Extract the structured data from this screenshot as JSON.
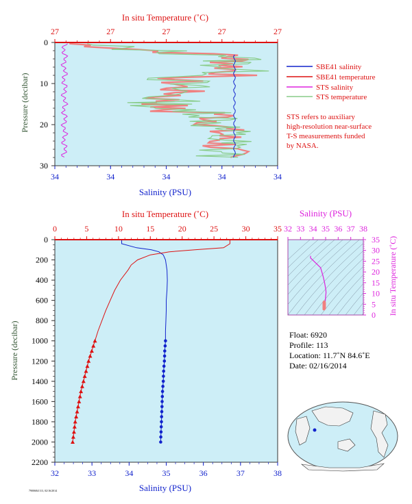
{
  "colors": {
    "plot_bg": "#cdeef7",
    "red": "#dd1111",
    "blue": "#1122cc",
    "magenta": "#dd22dd",
    "green": "#88cc88",
    "dark_green": "#335533",
    "salmon": "#f08080"
  },
  "top_panel": {
    "title": "In situ Temperature (˚C)",
    "top_ticks": [
      "27",
      "27",
      "27",
      "27",
      "27",
      "27"
    ],
    "bottom_ticks": [
      "34",
      "34",
      "34",
      "34",
      "34",
      "34"
    ],
    "y_ticks": [
      "0",
      "10",
      "20",
      "30"
    ],
    "ylabel": "Pressure (decibar)",
    "xlabel": "Salinity (PSU)",
    "legend": [
      {
        "label": "SBE41 salinity",
        "color": "#1122cc"
      },
      {
        "label": "SBE41 temperature",
        "color": "#dd1111"
      },
      {
        "label": "STS salinity",
        "color": "#dd22dd"
      },
      {
        "label": "STS temperature",
        "color": "#88cc88"
      }
    ],
    "note": [
      "STS refers to auxiliary",
      "high-resolution near-surface",
      "T-S measurements funded",
      "by NASA."
    ]
  },
  "main_panel": {
    "title": "In situ Temperature (˚C)",
    "top_ticks": [
      "0",
      "5",
      "10",
      "15",
      "20",
      "25",
      "30",
      "35"
    ],
    "bottom_ticks": [
      "32",
      "33",
      "34",
      "35",
      "36",
      "37",
      "38"
    ],
    "y_ticks": [
      "0",
      "200",
      "400",
      "600",
      "800",
      "1000",
      "1200",
      "1400",
      "1600",
      "1800",
      "2000",
      "2200"
    ],
    "ylabel": "Pressure (decibar)",
    "xlabel": "Salinity (PSU)"
  },
  "ts_panel": {
    "title": "Salinity (PSU)",
    "top_ticks": [
      "32",
      "33",
      "34",
      "35",
      "36",
      "37",
      "38"
    ],
    "right_ticks": [
      "0",
      "5",
      "10",
      "15",
      "20",
      "25",
      "30",
      "35"
    ],
    "ylabel": "In situ Temperature (˚C)"
  },
  "info": {
    "float": "Float:  6920",
    "profile": "Profile:  113",
    "location": "Location:  11.7˚N  84.6˚E",
    "date": "Date:  02/16/2014"
  },
  "footer_code": "7900684/113, 02/16/2014",
  "chart_data": [
    {
      "type": "line",
      "title": "In situ Temperature (˚C)",
      "xlabel": "Salinity (PSU)",
      "ylabel": "Pressure (decibar)",
      "ylim": [
        30,
        0
      ],
      "series": [
        {
          "name": "SBE41 salinity",
          "x": [
            33.995,
            33.995,
            33.996,
            33.996,
            33.995
          ],
          "y": [
            3,
            8,
            15,
            22,
            28
          ]
        },
        {
          "name": "STS salinity",
          "x": [
            33.964,
            33.965,
            33.965,
            33.966,
            33.964,
            33.965
          ],
          "y": [
            0.5,
            5,
            10,
            15,
            20,
            28
          ]
        }
      ]
    },
    {
      "type": "line",
      "title": "In situ Temperature (˚C)",
      "xlabel": "Salinity (PSU)",
      "ylabel": "Pressure (decibar)",
      "xlim": [
        32,
        38
      ],
      "ylim": [
        2200,
        0
      ],
      "series": [
        {
          "name": "Salinity",
          "y": [
            0,
            40,
            80,
            100,
            120,
            150,
            200,
            250,
            300,
            400,
            500,
            600,
            700,
            800,
            900,
            1000,
            1100,
            1200,
            1300,
            1400,
            1500,
            1600,
            1700,
            1800,
            1900,
            2000
          ],
          "x": [
            33.8,
            33.8,
            34.2,
            34.6,
            34.8,
            34.92,
            34.98,
            35.0,
            35.02,
            35.03,
            35.02,
            35.0,
            35.0,
            34.99,
            34.98,
            34.98,
            34.96,
            34.95,
            34.93,
            34.92,
            34.9,
            34.89,
            34.88,
            34.87,
            34.86,
            34.85
          ]
        },
        {
          "name": "In situ Temperature",
          "y": [
            0,
            40,
            80,
            100,
            120,
            150,
            200,
            250,
            300,
            400,
            500,
            600,
            700,
            800,
            900,
            1000,
            1100,
            1200,
            1300,
            1400,
            1500,
            1600,
            1700,
            1800,
            1900,
            2000
          ],
          "x": [
            27.5,
            27.5,
            26.5,
            22,
            18,
            15,
            13,
            12,
            11.5,
            10.3,
            9.4,
            8.7,
            8.0,
            7.4,
            6.8,
            6.3,
            5.8,
            5.3,
            4.9,
            4.5,
            4.1,
            3.8,
            3.5,
            3.2,
            3.0,
            2.8
          ]
        }
      ]
    },
    {
      "type": "scatter",
      "title": "Salinity (PSU)",
      "ylabel": "In situ Temperature (˚C)",
      "xlim": [
        32,
        38
      ],
      "ylim": [
        0,
        35
      ],
      "series": [
        {
          "name": "T-S",
          "x": [
            33.8,
            33.8,
            34.6,
            34.8,
            34.92,
            34.98,
            35.02,
            35.03,
            35.0,
            34.98,
            34.95,
            34.92,
            34.89,
            34.86,
            34.85
          ],
          "y": [
            27.5,
            26.5,
            22,
            18,
            15,
            13,
            11.5,
            10.3,
            8.7,
            6.8,
            5.3,
            4.5,
            3.8,
            3.0,
            2.8
          ]
        }
      ]
    }
  ]
}
